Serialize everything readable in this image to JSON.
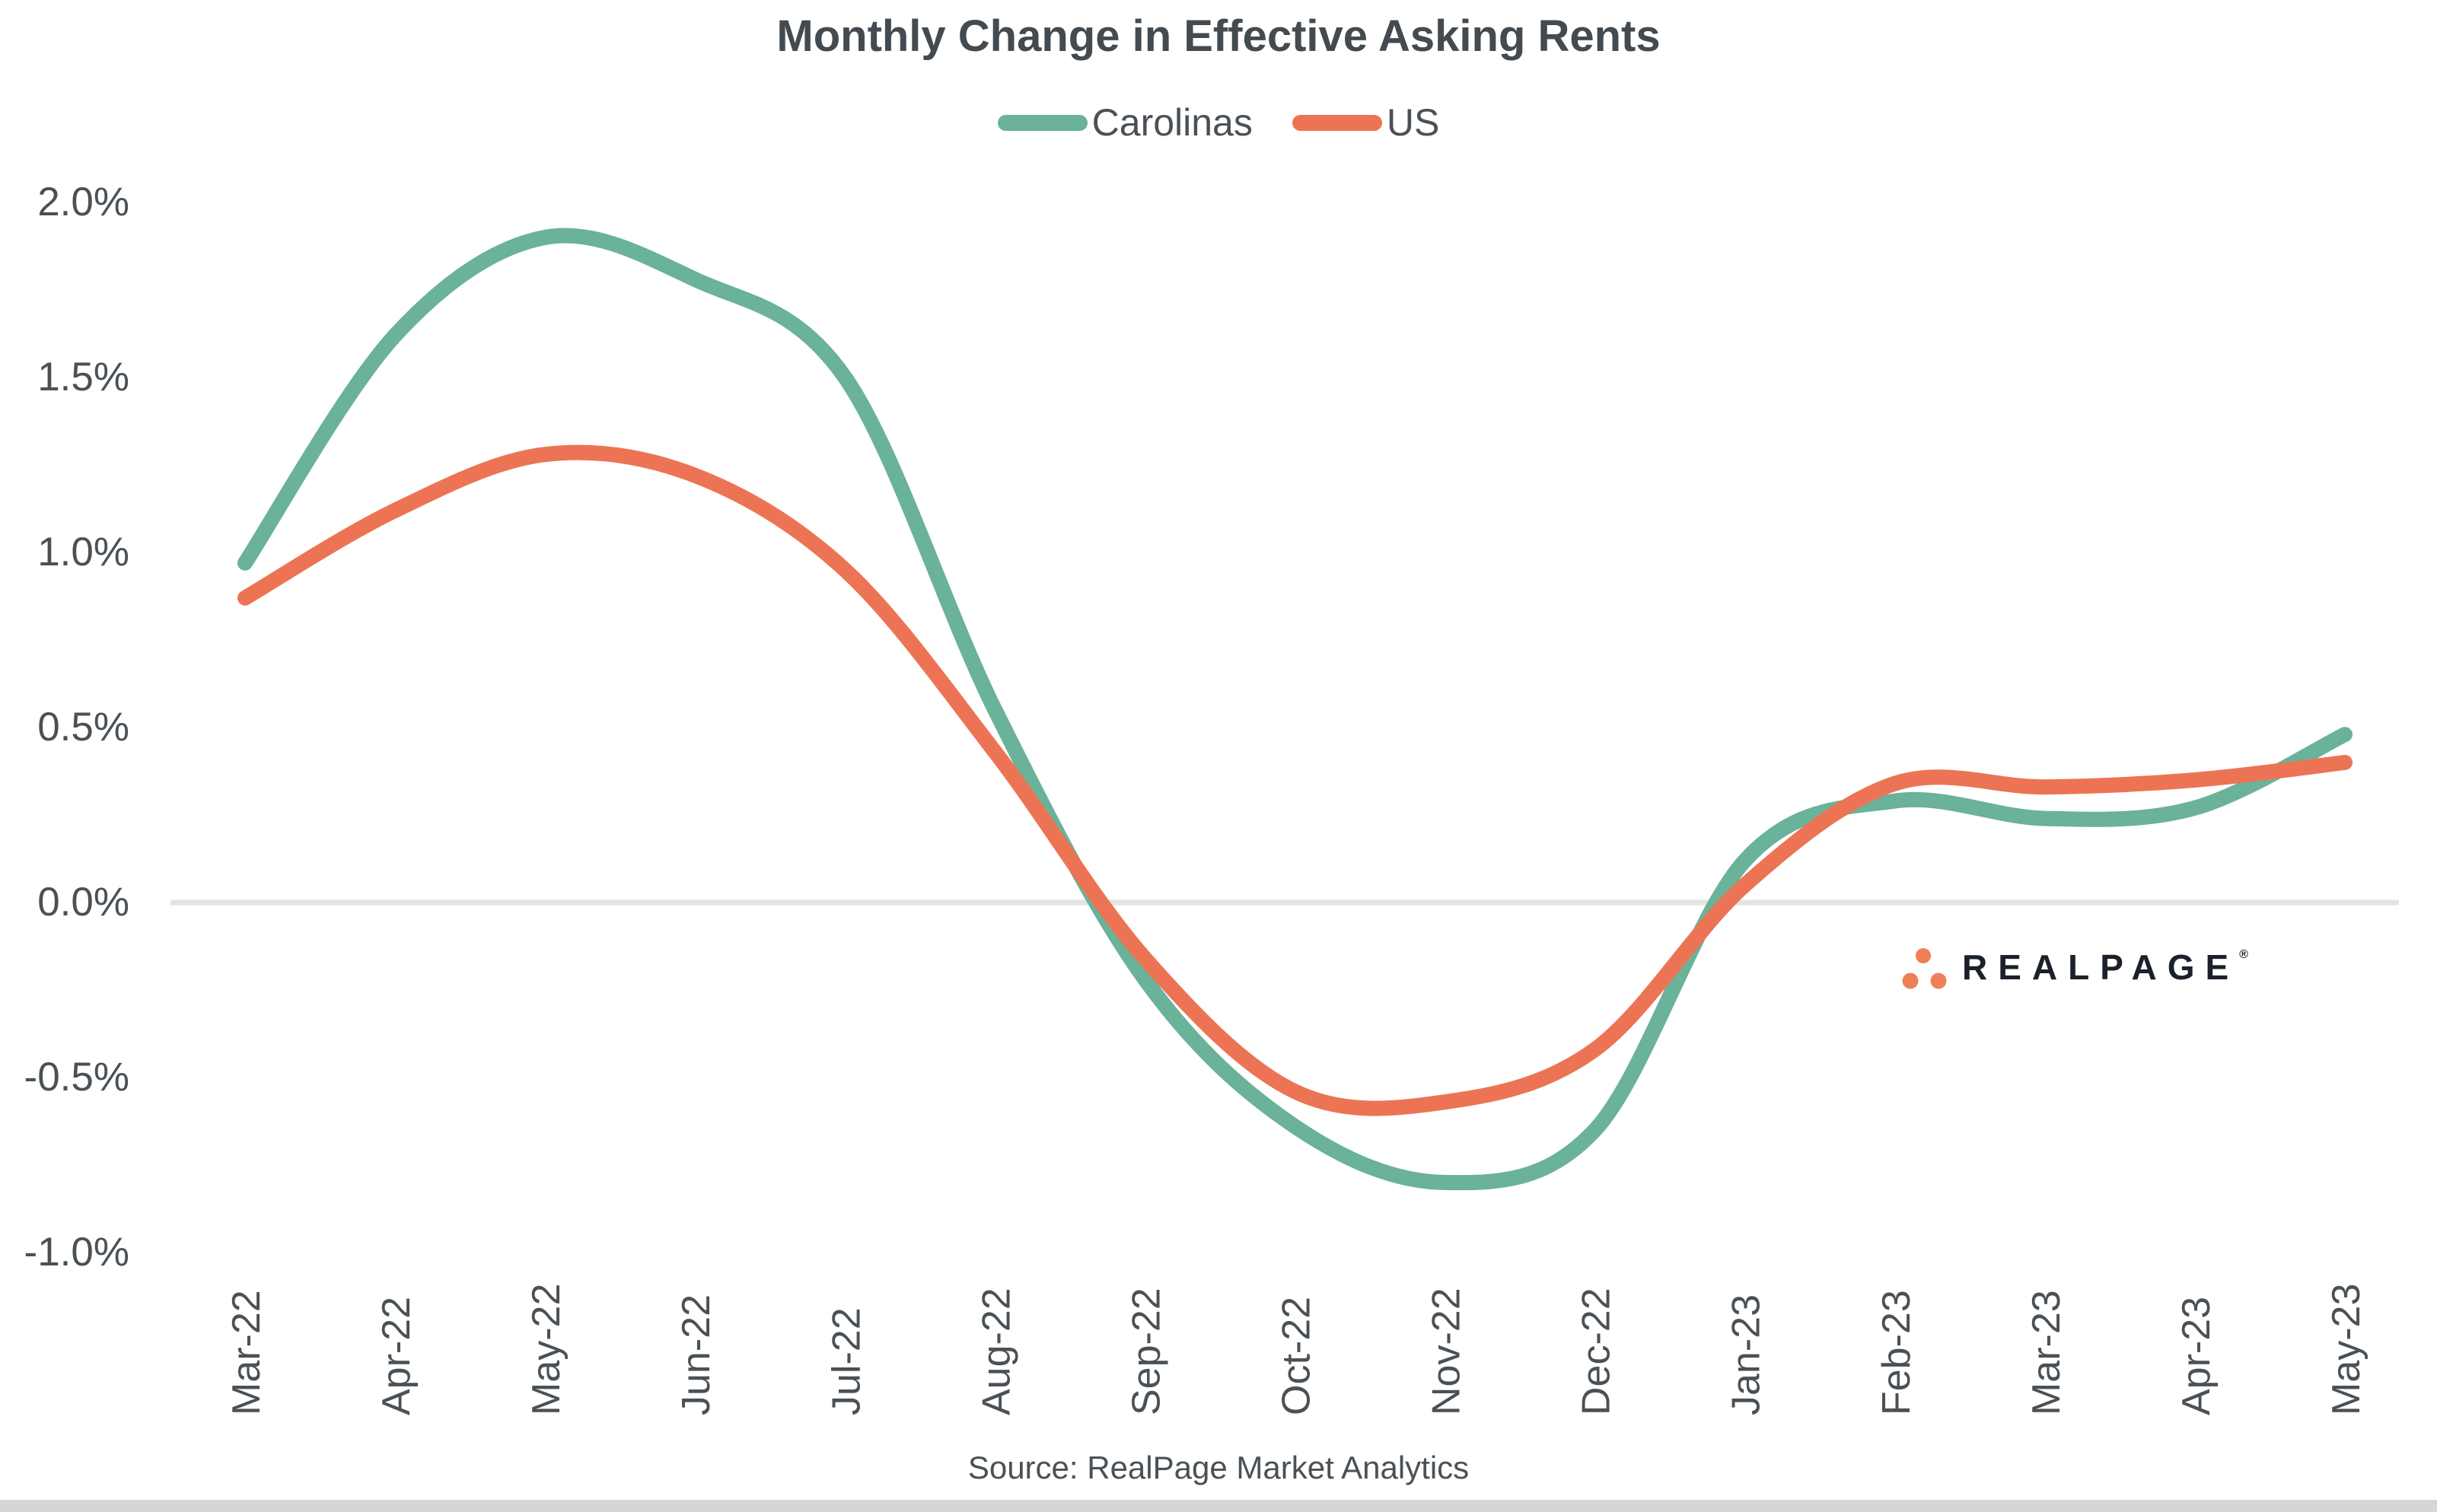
{
  "title": "Monthly Change in Effective Asking Rents",
  "legend": {
    "items": [
      {
        "label": "Carolinas",
        "color": "#6AB299"
      },
      {
        "label": "US",
        "color": "#EC7454"
      }
    ]
  },
  "source_note": "Source: RealPage Market Analytics",
  "logo": {
    "text": "REALPAGE",
    "registered_mark": "®",
    "dot_color": "#EE8059",
    "text_color": "#1B212A"
  },
  "colors": {
    "carolinas_line": "#6AB299",
    "us_line": "#EC7454",
    "axis_text": "#4A5156",
    "title_text": "#434B51",
    "gridline": "#E5E2E3",
    "bottom_bar": "#D7D5D6"
  },
  "chart_data": {
    "type": "line",
    "title": "Monthly Change in Effective Asking Rents",
    "categories": [
      "Mar-22",
      "Apr-22",
      "May-22",
      "Jun-22",
      "Jul-22",
      "Aug-22",
      "Sep-22",
      "Oct-22",
      "Nov-22",
      "Dec-22",
      "Jan-23",
      "Feb-23",
      "Mar-23",
      "Apr-23",
      "May-23"
    ],
    "series": [
      {
        "name": "Carolinas",
        "color": "#6AB299",
        "values": [
          0.97,
          1.62,
          1.9,
          1.78,
          1.5,
          0.55,
          -0.22,
          -0.64,
          -0.8,
          -0.65,
          0.12,
          0.29,
          0.24,
          0.27,
          0.48
        ]
      },
      {
        "name": "US",
        "color": "#EC7454",
        "values": [
          0.87,
          1.12,
          1.28,
          1.22,
          0.95,
          0.43,
          -0.16,
          -0.54,
          -0.57,
          -0.42,
          0.05,
          0.34,
          0.33,
          0.35,
          0.4
        ]
      }
    ],
    "xlabel": "",
    "ylabel": "",
    "y_ticks_labels": [
      "2.0%",
      "1.5%",
      "1.0%",
      "0.5%",
      "0.0%",
      "-0.5%",
      "-1.0%"
    ],
    "y_ticks_values": [
      2.0,
      1.5,
      1.0,
      0.5,
      0.0,
      -0.5,
      -1.0
    ],
    "ylim": [
      -1.0,
      2.0
    ],
    "unit": "percent",
    "gridlines": "zero-line-only",
    "line_style": "smooth",
    "legend_position": "top-center"
  }
}
